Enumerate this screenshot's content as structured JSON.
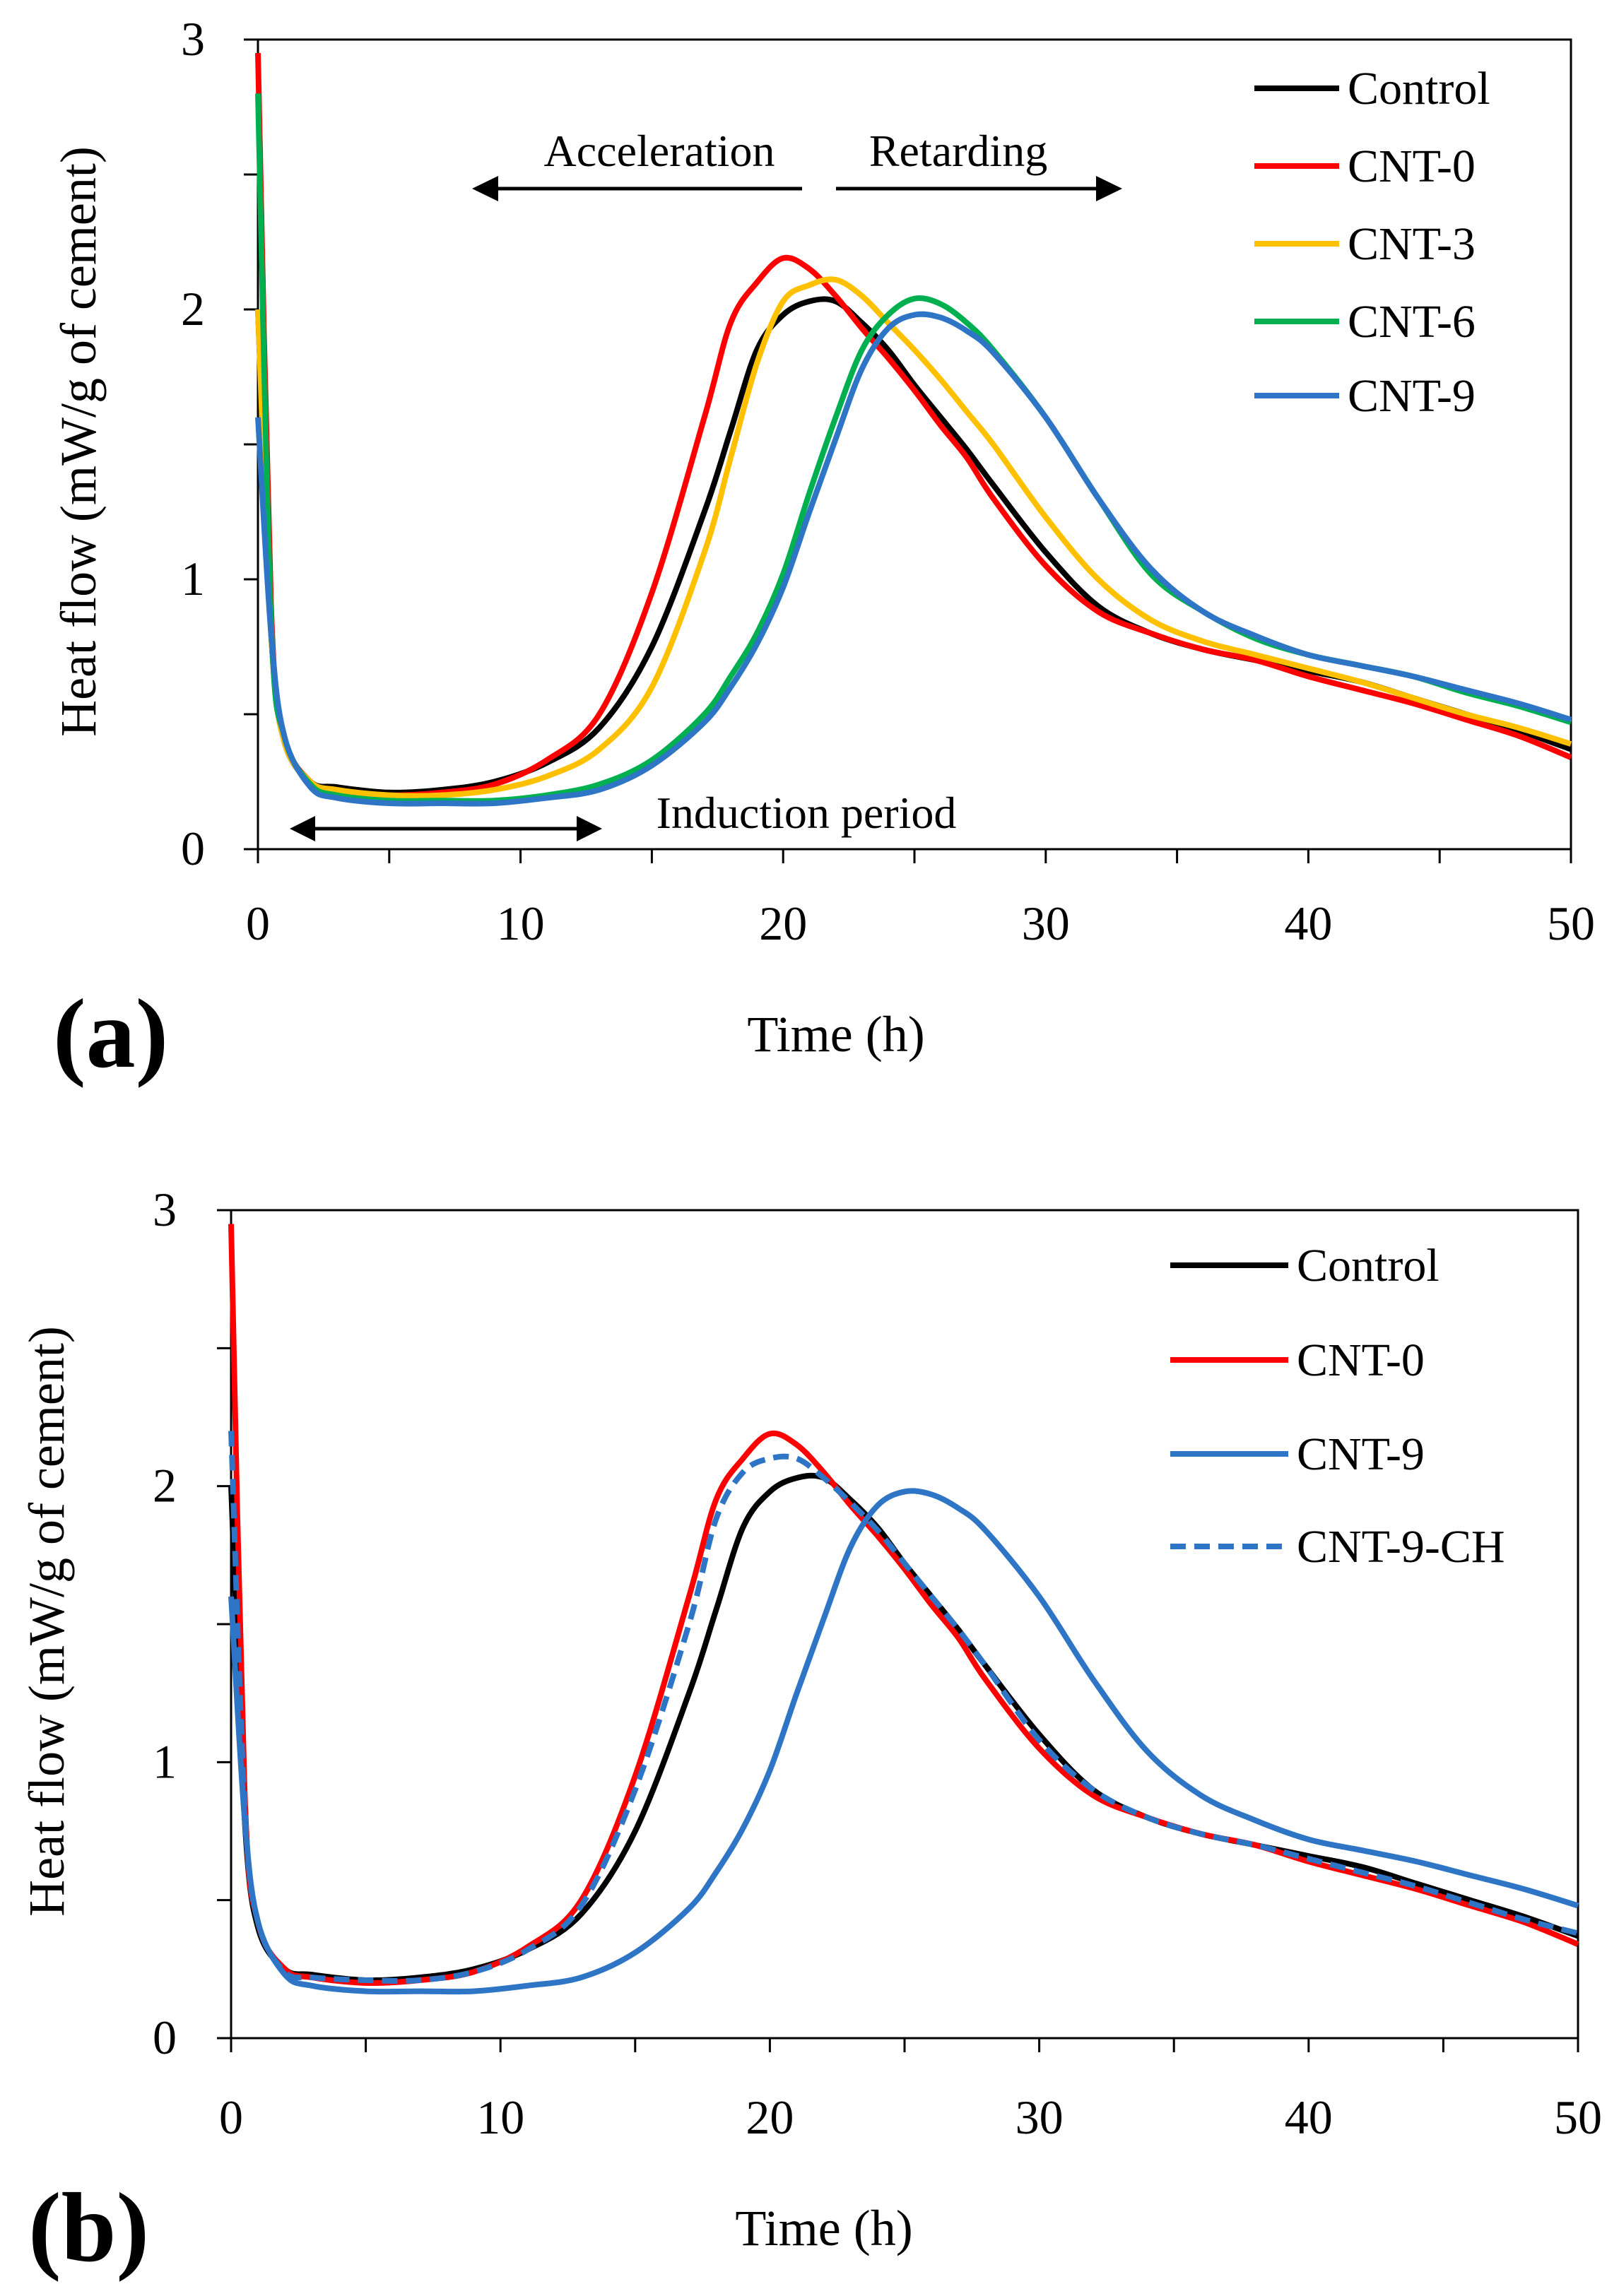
{
  "chart_data": [
    {
      "panel_label": "(a)",
      "type": "line",
      "xlabel": "Time (h)",
      "ylabel": "Heat flow (mW/g of cement)",
      "xlim": [
        0,
        50
      ],
      "ylim": [
        0,
        3
      ],
      "xticks": [
        "0",
        "10",
        "20",
        "30",
        "40",
        "50"
      ],
      "yticks": [
        "0",
        "1",
        "2",
        "3"
      ],
      "legend_position": "top-right",
      "annotations": {
        "acceleration": "Acceleration",
        "retarding": "Retarding",
        "induction": "Induction period"
      },
      "x": [
        0,
        0.5,
        1,
        2,
        3,
        5,
        7,
        9,
        11,
        13,
        15,
        17,
        18,
        19,
        20,
        21,
        22,
        23,
        24,
        25,
        26,
        27,
        28,
        30,
        32,
        34,
        36,
        38,
        40,
        42,
        44,
        46,
        48,
        50
      ],
      "series": [
        {
          "name": "Control",
          "color": "#000000",
          "dash": false,
          "values": [
            2.0,
            0.8,
            0.4,
            0.25,
            0.23,
            0.21,
            0.22,
            0.25,
            0.32,
            0.45,
            0.75,
            1.25,
            1.55,
            1.85,
            1.98,
            2.03,
            2.03,
            1.95,
            1.85,
            1.72,
            1.6,
            1.48,
            1.35,
            1.1,
            0.9,
            0.8,
            0.74,
            0.7,
            0.66,
            0.62,
            0.56,
            0.5,
            0.44,
            0.37
          ]
        },
        {
          "name": "CNT-0",
          "color": "#ff0000",
          "dash": false,
          "values": [
            2.95,
            0.9,
            0.42,
            0.25,
            0.22,
            0.2,
            0.21,
            0.24,
            0.33,
            0.5,
            0.95,
            1.6,
            1.95,
            2.1,
            2.19,
            2.15,
            2.05,
            1.93,
            1.82,
            1.7,
            1.57,
            1.45,
            1.3,
            1.05,
            0.88,
            0.8,
            0.74,
            0.7,
            0.64,
            0.59,
            0.54,
            0.48,
            0.42,
            0.34
          ]
        },
        {
          "name": "CNT-3",
          "color": "#ffc000",
          "dash": false,
          "values": [
            2.0,
            0.8,
            0.4,
            0.25,
            0.22,
            0.2,
            0.2,
            0.22,
            0.27,
            0.37,
            0.6,
            1.1,
            1.45,
            1.8,
            2.03,
            2.09,
            2.11,
            2.05,
            1.95,
            1.85,
            1.74,
            1.62,
            1.5,
            1.23,
            1.0,
            0.85,
            0.77,
            0.72,
            0.67,
            0.62,
            0.56,
            0.5,
            0.45,
            0.39
          ]
        },
        {
          "name": "CNT-6",
          "color": "#00b050",
          "dash": false,
          "values": [
            2.8,
            0.85,
            0.42,
            0.24,
            0.2,
            0.18,
            0.18,
            0.18,
            0.2,
            0.24,
            0.33,
            0.5,
            0.64,
            0.8,
            1.02,
            1.32,
            1.6,
            1.85,
            1.98,
            2.04,
            2.02,
            1.95,
            1.85,
            1.6,
            1.3,
            1.02,
            0.88,
            0.78,
            0.72,
            0.68,
            0.64,
            0.58,
            0.53,
            0.47
          ]
        },
        {
          "name": "CNT-9",
          "color": "#2e75c6",
          "dash": false,
          "values": [
            1.6,
            0.8,
            0.42,
            0.23,
            0.19,
            0.17,
            0.17,
            0.17,
            0.19,
            0.22,
            0.31,
            0.47,
            0.6,
            0.76,
            0.97,
            1.25,
            1.52,
            1.78,
            1.93,
            1.98,
            1.97,
            1.92,
            1.84,
            1.6,
            1.3,
            1.04,
            0.88,
            0.79,
            0.72,
            0.68,
            0.64,
            0.59,
            0.54,
            0.48
          ]
        }
      ]
    },
    {
      "panel_label": "(b)",
      "type": "line",
      "xlabel": "Time (h)",
      "ylabel": "Heat flow (mW/g of cement)",
      "xlim": [
        0,
        50
      ],
      "ylim": [
        0,
        3
      ],
      "xticks": [
        "0",
        "10",
        "20",
        "30",
        "40",
        "50"
      ],
      "yticks": [
        "0",
        "1",
        "2",
        "3"
      ],
      "legend_position": "top-right",
      "x": [
        0,
        0.5,
        1,
        2,
        3,
        5,
        7,
        9,
        11,
        13,
        15,
        17,
        18,
        19,
        20,
        21,
        22,
        23,
        24,
        25,
        26,
        27,
        28,
        30,
        32,
        34,
        36,
        38,
        40,
        42,
        44,
        46,
        48,
        50
      ],
      "series": [
        {
          "name": "Control",
          "color": "#000000",
          "dash": false,
          "values": [
            2.0,
            0.8,
            0.4,
            0.25,
            0.23,
            0.21,
            0.22,
            0.25,
            0.32,
            0.45,
            0.75,
            1.25,
            1.55,
            1.85,
            1.98,
            2.03,
            2.03,
            1.95,
            1.85,
            1.72,
            1.6,
            1.48,
            1.35,
            1.1,
            0.9,
            0.8,
            0.74,
            0.7,
            0.66,
            0.62,
            0.56,
            0.5,
            0.44,
            0.37
          ]
        },
        {
          "name": "CNT-0",
          "color": "#ff0000",
          "dash": false,
          "values": [
            2.95,
            0.9,
            0.42,
            0.25,
            0.22,
            0.2,
            0.21,
            0.24,
            0.33,
            0.5,
            0.95,
            1.6,
            1.95,
            2.1,
            2.19,
            2.15,
            2.05,
            1.93,
            1.82,
            1.7,
            1.57,
            1.45,
            1.3,
            1.05,
            0.88,
            0.8,
            0.74,
            0.7,
            0.64,
            0.59,
            0.54,
            0.48,
            0.42,
            0.34
          ]
        },
        {
          "name": "CNT-9",
          "color": "#2e75c6",
          "dash": false,
          "values": [
            1.6,
            0.8,
            0.42,
            0.23,
            0.19,
            0.17,
            0.17,
            0.17,
            0.19,
            0.22,
            0.31,
            0.47,
            0.6,
            0.76,
            0.97,
            1.25,
            1.52,
            1.78,
            1.93,
            1.98,
            1.97,
            1.92,
            1.84,
            1.6,
            1.3,
            1.04,
            0.88,
            0.79,
            0.72,
            0.68,
            0.64,
            0.59,
            0.54,
            0.48
          ]
        },
        {
          "name": "CNT-9-CH",
          "color": "#2e75c6",
          "dash": true,
          "values": [
            2.2,
            0.85,
            0.42,
            0.24,
            0.22,
            0.21,
            0.21,
            0.24,
            0.32,
            0.48,
            0.9,
            1.5,
            1.88,
            2.05,
            2.1,
            2.1,
            2.03,
            1.94,
            1.84,
            1.72,
            1.6,
            1.48,
            1.35,
            1.08,
            0.9,
            0.8,
            0.74,
            0.7,
            0.65,
            0.6,
            0.55,
            0.49,
            0.43,
            0.38
          ]
        }
      ]
    }
  ]
}
